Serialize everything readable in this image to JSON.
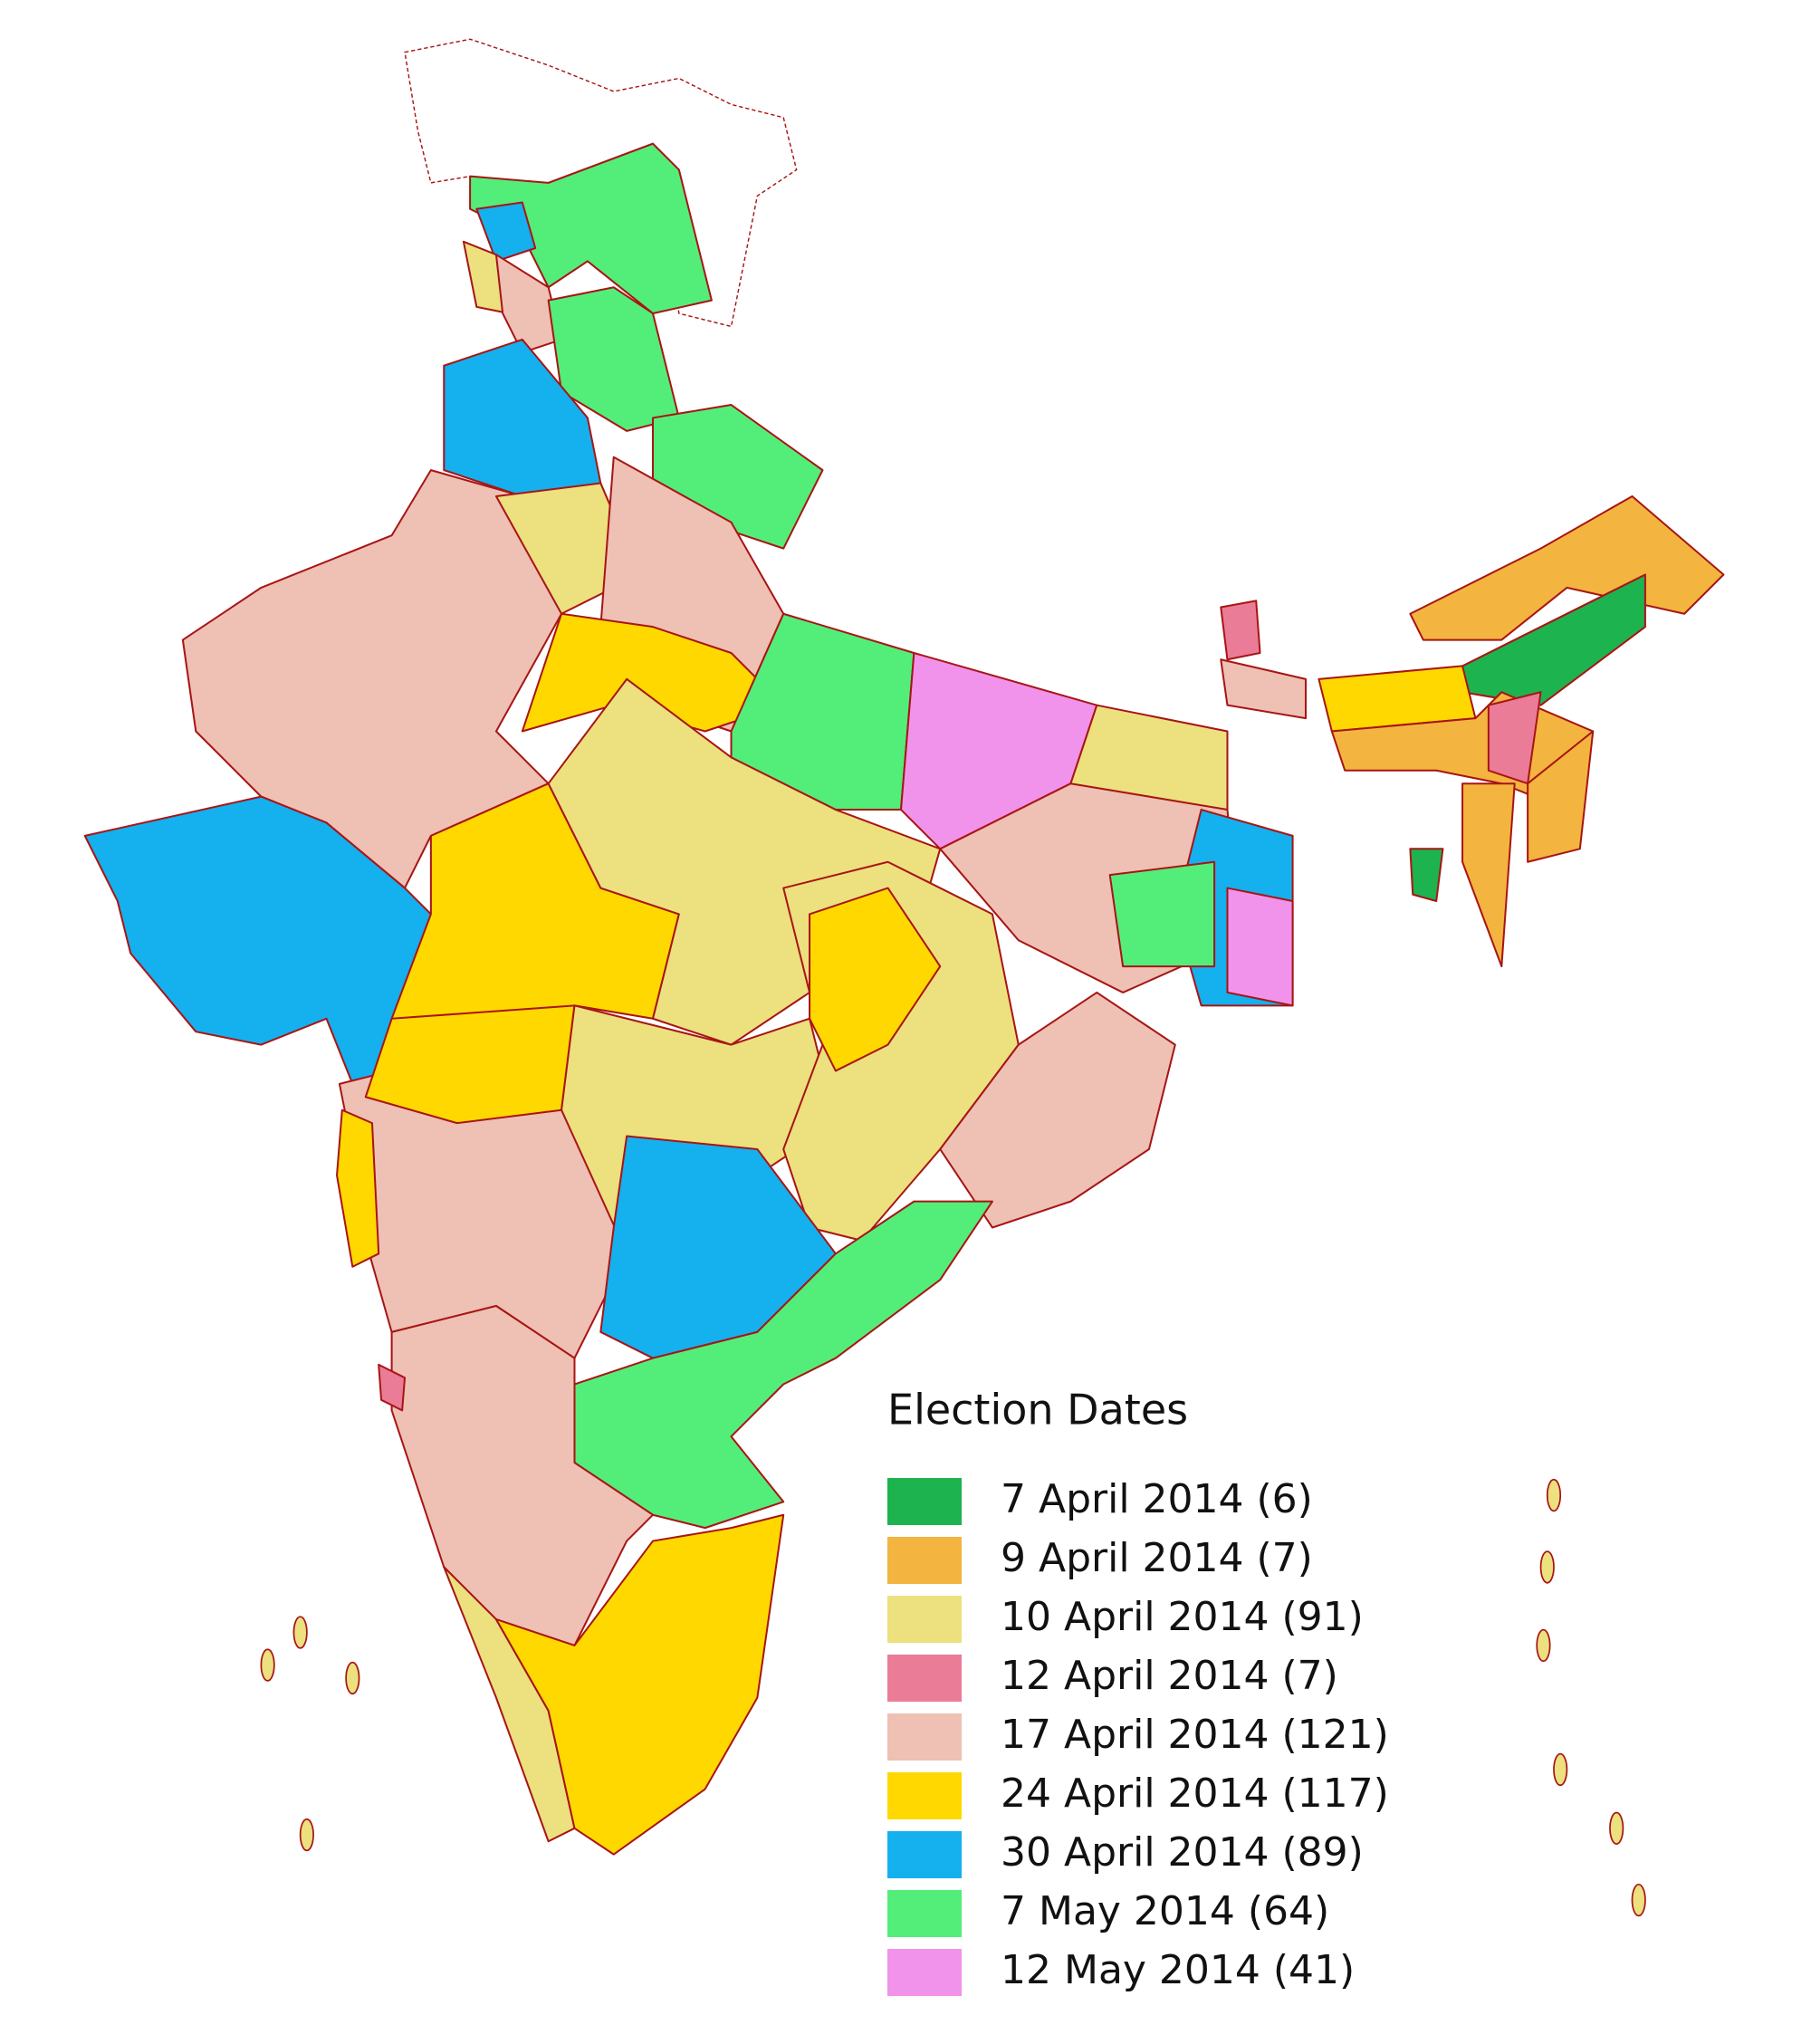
{
  "legend": {
    "title": "Election Dates",
    "entries": [
      {
        "label": "7 April 2014 (6)",
        "color": "#1db34f"
      },
      {
        "label": "9 April 2014 (7)",
        "color": "#f3b53f"
      },
      {
        "label": "10 April 2014 (91)",
        "color": "#ece07f"
      },
      {
        "label": "12 April 2014 (7)",
        "color": "#ea7c97"
      },
      {
        "label": "17 April 2014 (121)",
        "color": "#efc0b4"
      },
      {
        "label": "24 April 2014 (117)",
        "color": "#ffd800"
      },
      {
        "label": "30 April 2014 (89)",
        "color": "#15b0ee"
      },
      {
        "label": "7 May 2014 (64)",
        "color": "#53ee7a"
      },
      {
        "label": "12 May 2014 (41)",
        "color": "#f193ea"
      }
    ]
  }
}
